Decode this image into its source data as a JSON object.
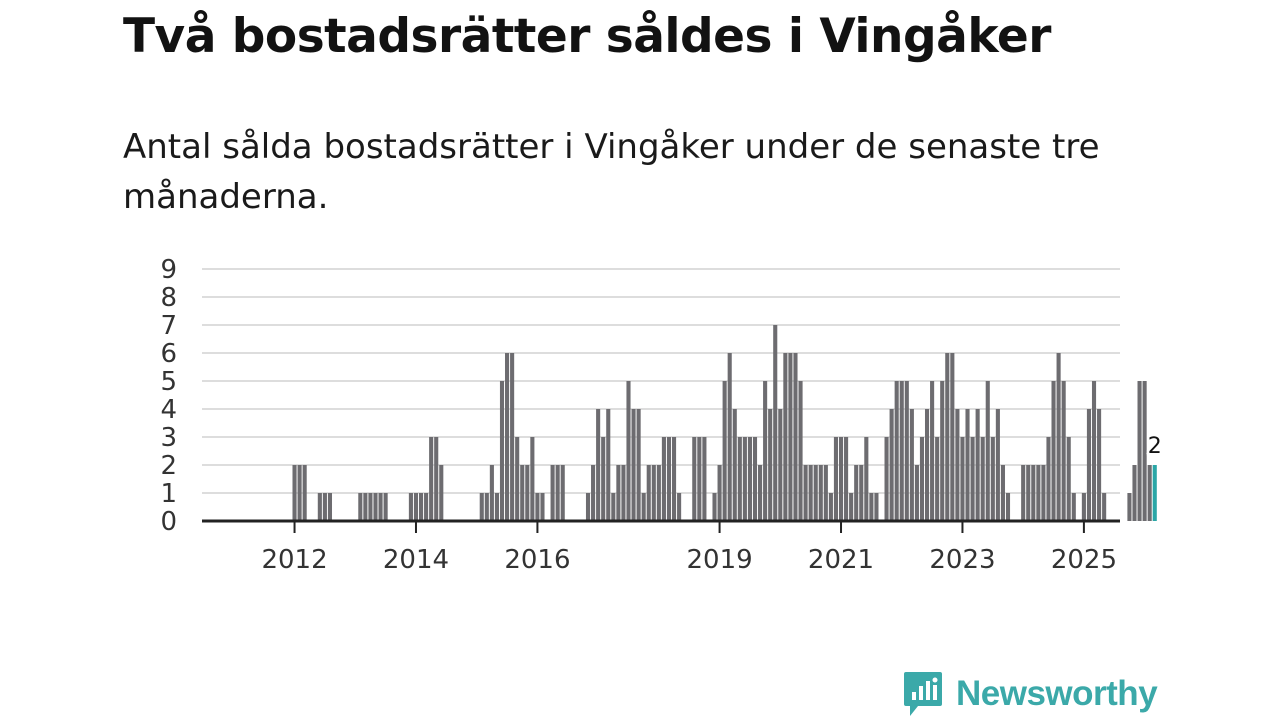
{
  "header": {
    "title": "Två bostadsrätter såldes i Vingåker",
    "subtitle": "Antal sålda bostadsrätter i Vingåker under de senaste tre månaderna."
  },
  "brand": {
    "name": "Newsworthy",
    "color": "#3ba9a9",
    "icon": "newsworthy-logo-icon"
  },
  "colors": {
    "bar": "#6d6c70",
    "highlight": "#2aa6a6",
    "grid": "#dddddd",
    "axis": "#222222"
  },
  "chart_data": {
    "type": "bar",
    "title": "Två bostadsrätter såldes i Vingåker",
    "xlabel": "",
    "ylabel": "",
    "ylim": [
      0,
      9
    ],
    "yticks": [
      "0",
      "1",
      "2",
      "3",
      "4",
      "5",
      "6",
      "7",
      "8",
      "9"
    ],
    "xticks": [
      {
        "label": "2012",
        "index": 9
      },
      {
        "label": "2014",
        "index": 33
      },
      {
        "label": "2016",
        "index": 57
      },
      {
        "label": "2019",
        "index": 93
      },
      {
        "label": "2021",
        "index": 117
      },
      {
        "label": "2023",
        "index": 141
      },
      {
        "label": "2025",
        "index": 165
      }
    ],
    "values": [
      0,
      0,
      0,
      0,
      0,
      0,
      0,
      0,
      0,
      2,
      2,
      2,
      0,
      0,
      1,
      1,
      1,
      0,
      0,
      0,
      0,
      0,
      1,
      1,
      1,
      1,
      1,
      1,
      0,
      0,
      0,
      0,
      1,
      1,
      1,
      1,
      3,
      3,
      2,
      0,
      0,
      0,
      0,
      0,
      0,
      0,
      1,
      1,
      2,
      1,
      5,
      6,
      6,
      3,
      2,
      2,
      3,
      1,
      1,
      0,
      2,
      2,
      2,
      0,
      0,
      0,
      0,
      1,
      2,
      4,
      3,
      4,
      1,
      2,
      2,
      5,
      4,
      4,
      1,
      2,
      2,
      2,
      3,
      3,
      3,
      1,
      0,
      0,
      3,
      3,
      3,
      0,
      1,
      2,
      5,
      6,
      4,
      3,
      3,
      3,
      3,
      2,
      5,
      4,
      7,
      4,
      6,
      6,
      6,
      5,
      2,
      2,
      2,
      2,
      2,
      1,
      3,
      3,
      3,
      1,
      2,
      2,
      3,
      1,
      1,
      0,
      3,
      4,
      5,
      5,
      5,
      4,
      2,
      3,
      4,
      5,
      3,
      5,
      6,
      6,
      4,
      3,
      4,
      3,
      4,
      3,
      5,
      3,
      4,
      2,
      1,
      0,
      0,
      2,
      2,
      2,
      2,
      2,
      3,
      5,
      6,
      5,
      3,
      1,
      0,
      1,
      4,
      5,
      4,
      1,
      0,
      0,
      0,
      0,
      1,
      2,
      5,
      5,
      2,
      2
    ],
    "highlight_index": 179,
    "data_label": "2"
  }
}
